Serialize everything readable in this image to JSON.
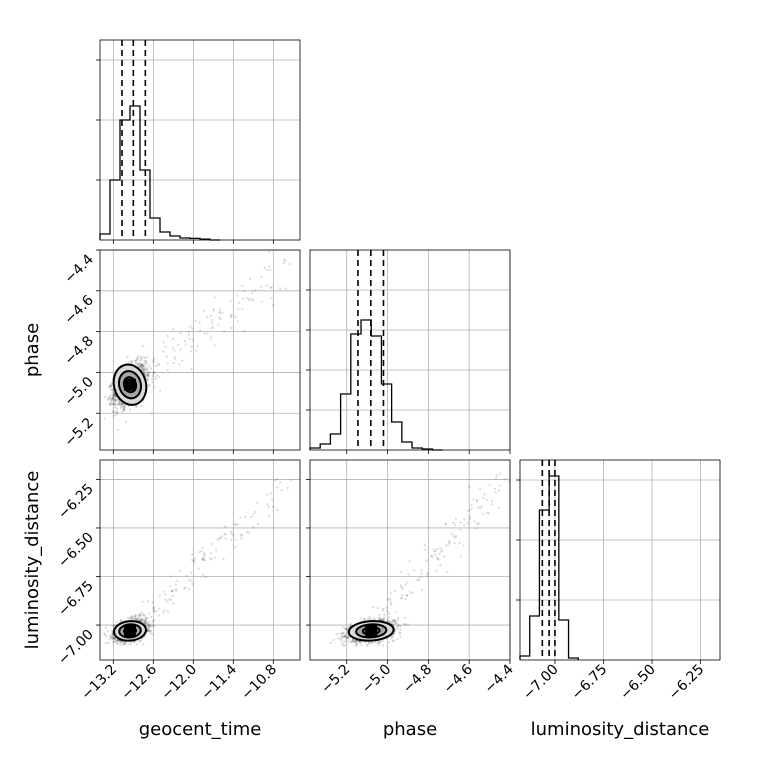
{
  "chart_data": {
    "type": "corner",
    "parameters": [
      {
        "key": "geocent_time",
        "label": "geocent_time",
        "range": [
          -13.4,
          -10.4
        ],
        "ticks": [
          -13.2,
          -12.6,
          -12.0,
          -11.4,
          -10.8
        ],
        "tick_labels": [
          "−13.2",
          "−12.6",
          "−12.0",
          "−11.4",
          "−10.8"
        ],
        "quantiles": [
          -13.07,
          -12.9,
          -12.72
        ],
        "hist": {
          "edges": [
            -13.4,
            -13.25,
            -13.1,
            -12.95,
            -12.8,
            -12.65,
            -12.5,
            -12.35,
            -12.2,
            -12.05,
            -11.9,
            -11.75,
            -11.6
          ],
          "counts": [
            0.03,
            0.3,
            0.6,
            0.67,
            0.35,
            0.11,
            0.04,
            0.02,
            0.01,
            0.008,
            0.004,
            0.0
          ]
        },
        "hist_ticks": [
          0.3,
          0.6,
          0.9
        ]
      },
      {
        "key": "phase",
        "label": "phase",
        "range": [
          -5.38,
          -4.4
        ],
        "ticks": [
          -5.2,
          -5.0,
          -4.8,
          -4.6,
          -4.4
        ],
        "tick_labels": [
          "−5.2",
          "−5.0",
          "−4.8",
          "−4.6",
          "−4.4"
        ],
        "quantiles": [
          -5.145,
          -5.082,
          -5.02
        ],
        "hist": {
          "edges": [
            -5.38,
            -5.33,
            -5.28,
            -5.23,
            -5.18,
            -5.13,
            -5.08,
            -5.03,
            -4.98,
            -4.93,
            -4.88,
            -4.83,
            -4.78,
            -4.73
          ],
          "counts": [
            0.01,
            0.03,
            0.08,
            0.28,
            0.58,
            0.65,
            0.57,
            0.33,
            0.14,
            0.04,
            0.01,
            0.005,
            0.0
          ]
        },
        "hist_ticks": [
          0.2,
          0.4,
          0.6,
          0.8
        ]
      },
      {
        "key": "luminosity_distance",
        "label": "luminosity_distance",
        "range": [
          -7.18,
          -6.15
        ],
        "ticks": [
          -7.0,
          -6.75,
          -6.5,
          -6.25
        ],
        "tick_labels": [
          "−7.00",
          "−6.75",
          "−6.50",
          "−6.25"
        ],
        "quantiles": [
          -7.065,
          -7.03,
          -7.0
        ],
        "hist": {
          "edges": [
            -7.18,
            -7.13,
            -7.08,
            -7.03,
            -6.98,
            -6.93,
            -6.88
          ],
          "counts": [
            0.02,
            0.22,
            0.75,
            0.92,
            0.2,
            0.01
          ]
        },
        "hist_ticks": [
          0.3,
          0.6,
          0.9
        ]
      }
    ],
    "axis_labels": {
      "y_row1": "phase",
      "y_row2": "luminosity_distance",
      "x_col0": "geocent_time",
      "x_col1": "phase",
      "x_col2": "luminosity_distance"
    },
    "grid": true,
    "density_peaks": [
      {
        "x": "geocent_time",
        "y": "phase",
        "center": [
          -12.95,
          -5.06
        ],
        "sd": [
          0.12,
          0.05
        ],
        "rho": 0.45
      },
      {
        "x": "geocent_time",
        "y": "luminosity_distance",
        "center": [
          -12.95,
          -7.03
        ],
        "sd": [
          0.12,
          0.025
        ],
        "rho": 0.3
      },
      {
        "x": "phase",
        "y": "luminosity_distance",
        "center": [
          -5.08,
          -7.03
        ],
        "sd": [
          0.055,
          0.025
        ],
        "rho": 0.3
      }
    ]
  }
}
